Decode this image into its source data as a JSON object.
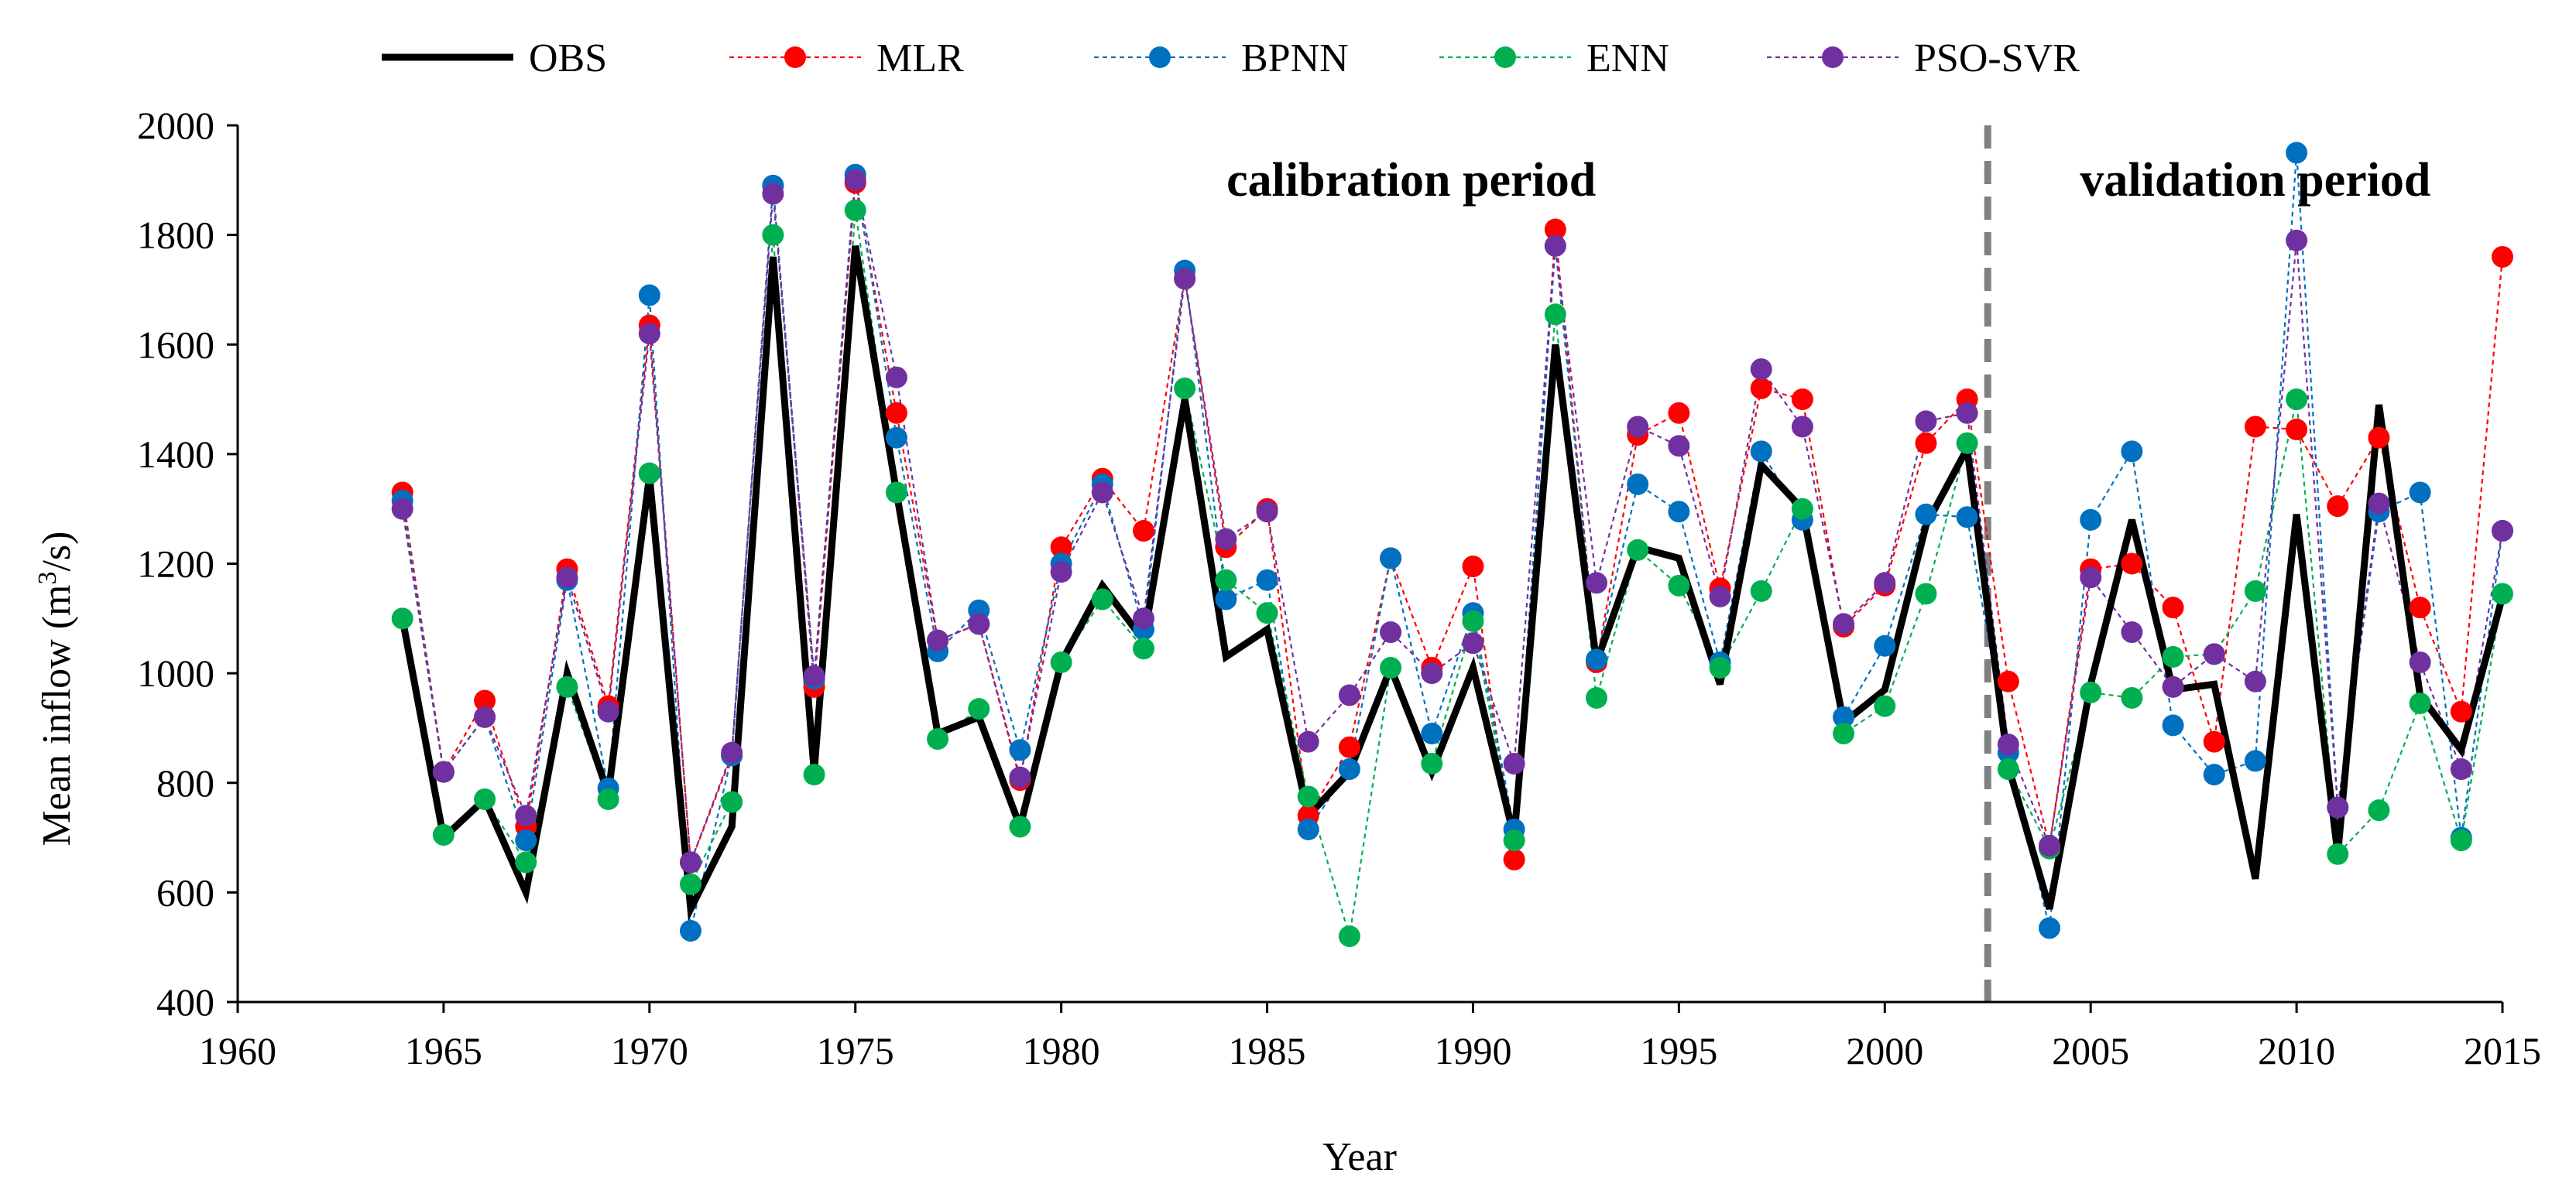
{
  "colors": {
    "OBS": "#000000",
    "MLR": "#ff0000",
    "BPNN": "#0070c0",
    "ENN": "#00b050",
    "PSO-SVR": "#7030a0",
    "axis": "#000000",
    "divider": "#808080"
  },
  "chart_data": {
    "type": "line",
    "title": "",
    "xlabel": "Year",
    "ylabel_main": "Mean inflow (m",
    "ylabel_sup": "3",
    "ylabel_tail": "/s)",
    "xlim": [
      1960,
      2015
    ],
    "ylim": [
      400,
      2000
    ],
    "x_ticks": [
      "1960",
      "1965",
      "1970",
      "1975",
      "1980",
      "1985",
      "1990",
      "1995",
      "2000",
      "2005",
      "2010",
      "2015"
    ],
    "y_ticks": [
      "400",
      "600",
      "800",
      "1000",
      "1200",
      "1400",
      "1600",
      "1800",
      "2000"
    ],
    "grid": false,
    "legend_position": "top",
    "divider_x": 2002.5,
    "annotations": [
      {
        "text": "calibration  period",
        "x": 1988.5,
        "y": 1900
      },
      {
        "text": "validation  period",
        "x": 2009,
        "y": 1900
      }
    ],
    "x": [
      1964,
      1965,
      1966,
      1967,
      1968,
      1969,
      1970,
      1971,
      1972,
      1973,
      1974,
      1975,
      1976,
      1977,
      1978,
      1979,
      1980,
      1981,
      1982,
      1983,
      1984,
      1985,
      1986,
      1987,
      1988,
      1989,
      1990,
      1991,
      1992,
      1993,
      1994,
      1995,
      1996,
      1997,
      1998,
      1999,
      2000,
      2001,
      2002,
      2003,
      2004,
      2005,
      2006,
      2007,
      2008,
      2009,
      2010,
      2011,
      2012,
      2013,
      2014,
      2015
    ],
    "series": [
      {
        "name": "OBS",
        "style": "line",
        "values": [
          1100,
          700,
          770,
          600,
          1000,
          780,
          1360,
          570,
          720,
          1760,
          820,
          1780,
          1330,
          890,
          920,
          720,
          1020,
          1160,
          1060,
          1500,
          1030,
          1080,
          740,
          820,
          1010,
          820,
          1010,
          700,
          1600,
          1020,
          1230,
          1210,
          980,
          1380,
          1300,
          910,
          970,
          1270,
          1410,
          830,
          570,
          980,
          1280,
          970,
          980,
          625,
          1290,
          670,
          1490,
          960,
          860,
          1140
        ]
      },
      {
        "name": "MLR",
        "style": "dots",
        "values": [
          1330,
          820,
          950,
          720,
          1190,
          940,
          1635,
          655,
          850,
          1890,
          975,
          1895,
          1475,
          1060,
          1090,
          805,
          1230,
          1355,
          1260,
          1720,
          1230,
          1300,
          740,
          865,
          1210,
          1010,
          1195,
          660,
          1810,
          1020,
          1435,
          1475,
          1155,
          1520,
          1500,
          1085,
          1160,
          1420,
          1500,
          985,
          685,
          1190,
          1200,
          1120,
          875,
          1450,
          1445,
          1305,
          1430,
          1120,
          930,
          1760
        ]
      },
      {
        "name": "BPNN",
        "style": "dots",
        "values": [
          1315,
          820,
          920,
          695,
          1170,
          790,
          1690,
          530,
          850,
          1890,
          990,
          1910,
          1430,
          1040,
          1115,
          860,
          1200,
          1345,
          1080,
          1735,
          1135,
          1170,
          715,
          825,
          1210,
          890,
          1110,
          715,
          1780,
          1025,
          1345,
          1295,
          1020,
          1405,
          1280,
          920,
          1050,
          1290,
          1285,
          855,
          535,
          1280,
          1405,
          905,
          815,
          840,
          1950,
          755,
          1295,
          1330,
          700,
          1260
        ]
      },
      {
        "name": "ENN",
        "style": "dots",
        "values": [
          1100,
          705,
          770,
          655,
          975,
          770,
          1365,
          615,
          765,
          1800,
          815,
          1845,
          1330,
          880,
          935,
          720,
          1020,
          1135,
          1045,
          1520,
          1170,
          1110,
          775,
          520,
          1010,
          835,
          1095,
          695,
          1655,
          955,
          1225,
          1160,
          1010,
          1150,
          1300,
          890,
          940,
          1145,
          1420,
          825,
          680,
          965,
          955,
          1030,
          1035,
          1150,
          1500,
          670,
          750,
          945,
          695,
          1145
        ]
      },
      {
        "name": "PSO-SVR",
        "style": "dots",
        "values": [
          1300,
          820,
          920,
          740,
          1175,
          930,
          1620,
          655,
          855,
          1875,
          995,
          1900,
          1540,
          1060,
          1090,
          810,
          1185,
          1330,
          1100,
          1720,
          1245,
          1295,
          875,
          960,
          1075,
          1000,
          1055,
          835,
          1780,
          1165,
          1450,
          1415,
          1140,
          1555,
          1450,
          1090,
          1165,
          1460,
          1475,
          870,
          685,
          1175,
          1075,
          975,
          1035,
          985,
          1790,
          755,
          1310,
          1020,
          825,
          1260
        ]
      }
    ]
  }
}
